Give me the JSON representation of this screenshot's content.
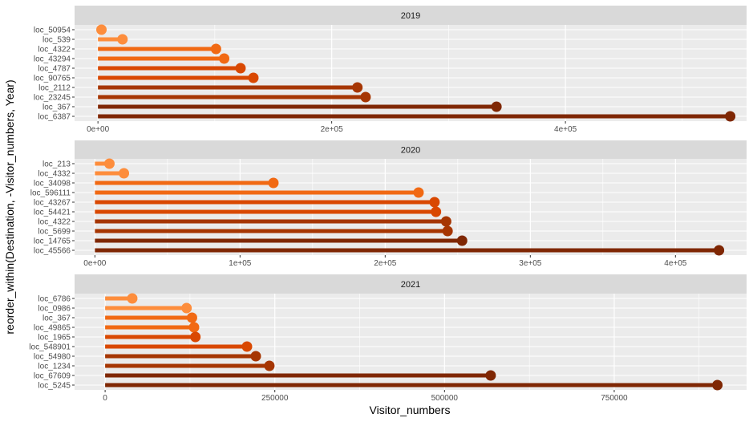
{
  "chart_data": {
    "type": "lollipop",
    "xlabel": "Visitor_numbers",
    "ylabel": "reorder_within(Destination, -Visitor_numbers, Year)",
    "colors": [
      "#fd8d3c",
      "#f16913",
      "#d94801",
      "#a63603",
      "#7f2704"
    ],
    "panel_background": "#ebebeb",
    "strip_background": "#d9d9d9",
    "grid": true,
    "panels": [
      {
        "strip": "2019",
        "xlim": [
          -20000,
          555000
        ],
        "ticks": [
          {
            "value": 0,
            "label": "0e+00"
          },
          {
            "value": 200000,
            "label": "2e+05"
          },
          {
            "value": 400000,
            "label": "4e+05"
          }
        ],
        "categories": [
          "loc_50954",
          "loc_539",
          "loc_4322",
          "loc_43294",
          "loc_4787",
          "loc_90765",
          "loc_2112",
          "loc_23245",
          "loc_367",
          "loc_6387"
        ],
        "values": [
          3000,
          21000,
          101000,
          108000,
          122000,
          133000,
          222000,
          229000,
          341000,
          541000
        ]
      },
      {
        "strip": "2020",
        "xlim": [
          -14000,
          449000
        ],
        "ticks": [
          {
            "value": 0,
            "label": "0e+00"
          },
          {
            "value": 100000,
            "label": "1e+05"
          },
          {
            "value": 200000,
            "label": "2e+05"
          },
          {
            "value": 300000,
            "label": "3e+05"
          },
          {
            "value": 400000,
            "label": "4e+05"
          }
        ],
        "categories": [
          "loc_213",
          "loc_4332",
          "loc_34098",
          "loc_596111",
          "loc_43267",
          "loc_54421",
          "loc_4322",
          "loc_5699",
          "loc_14765",
          "loc_45566"
        ],
        "values": [
          10000,
          20000,
          123000,
          223000,
          234000,
          235000,
          242000,
          243000,
          253000,
          430000
        ]
      },
      {
        "strip": "2021",
        "xlim": [
          -45000,
          945000
        ],
        "ticks": [
          {
            "value": 0,
            "label": "0"
          },
          {
            "value": 250000,
            "label": "250000"
          },
          {
            "value": 500000,
            "label": "500000"
          },
          {
            "value": 750000,
            "label": "750000"
          }
        ],
        "categories": [
          "loc_6786",
          "loc_0986",
          "loc_367",
          "loc_49865",
          "loc_1965",
          "loc_548901",
          "loc_54980",
          "loc_1234",
          "loc_67609",
          "loc_5245"
        ],
        "values": [
          40000,
          120000,
          128000,
          131000,
          133000,
          209000,
          222000,
          242000,
          568000,
          902000
        ]
      }
    ]
  }
}
